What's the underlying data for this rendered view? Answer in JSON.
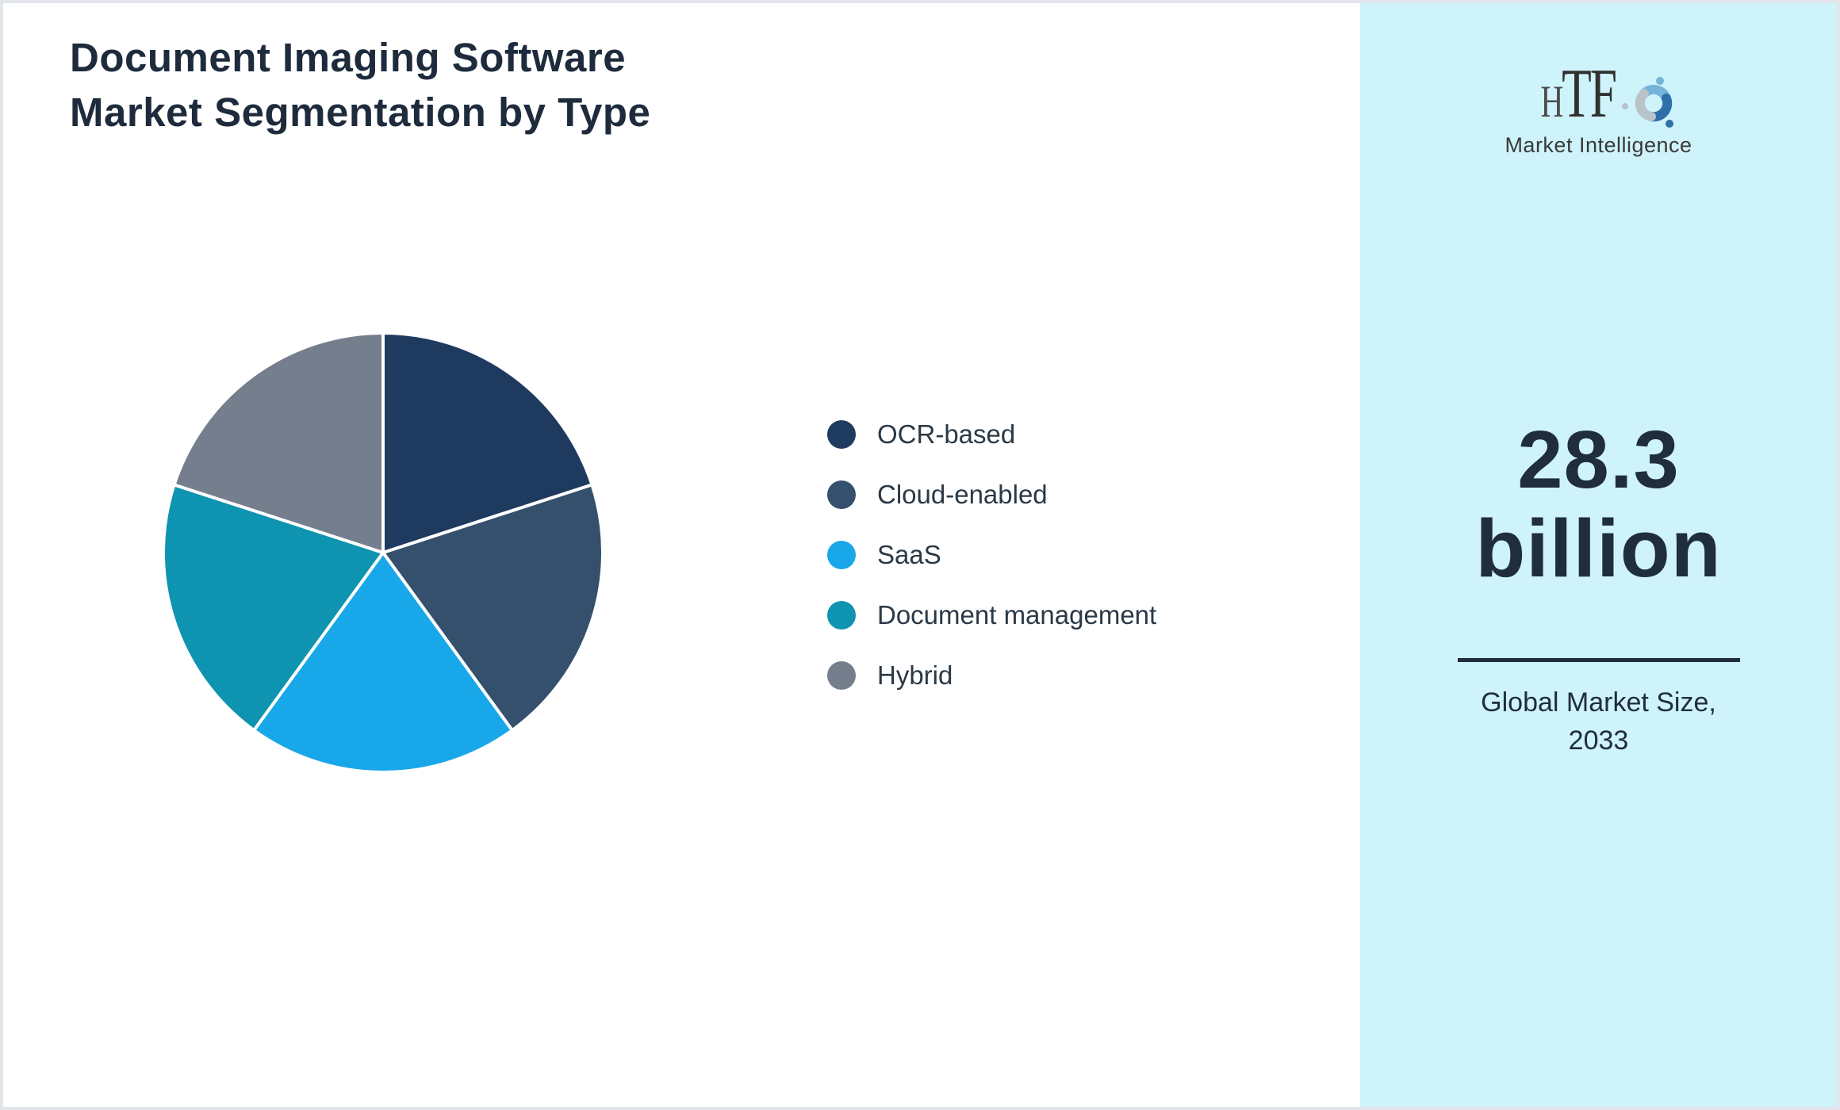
{
  "header": {
    "title_line1": "Document Imaging Software",
    "title_line2": "Market Segmentation by Type"
  },
  "chart_data": {
    "type": "pie",
    "title": "Document Imaging Software Market Segmentation by Type",
    "labels": [
      "OCR-based",
      "Cloud-enabled",
      "SaaS",
      "Document management",
      "Hybrid"
    ],
    "values": [
      20,
      20,
      20,
      20,
      20
    ],
    "values_note": "no numeric labels shown; five visually equal 72-degree wedges, estimated 20% each",
    "colors": [
      "#1e3a5f",
      "#34506c",
      "#18a7e8",
      "#0e93b0",
      "#747e8d"
    ],
    "slice_border_color": "#ffffff",
    "start_angle_deg": 0,
    "direction": "clockwise",
    "legend_position": "right",
    "legend_text_color": "#2b3946"
  },
  "sidebar": {
    "background_color": "#cef3fb",
    "logo": {
      "text": "HTF",
      "subtext": "Market Intelligence",
      "swirl_colors": [
        "#74b3da",
        "#2f6fa8",
        "#b9c3ca"
      ]
    },
    "market_size": {
      "value": "28.3",
      "unit": "billion"
    },
    "caption_line1": "Global Market Size,",
    "caption_line2": "2033",
    "text_color": "#202d3d"
  }
}
